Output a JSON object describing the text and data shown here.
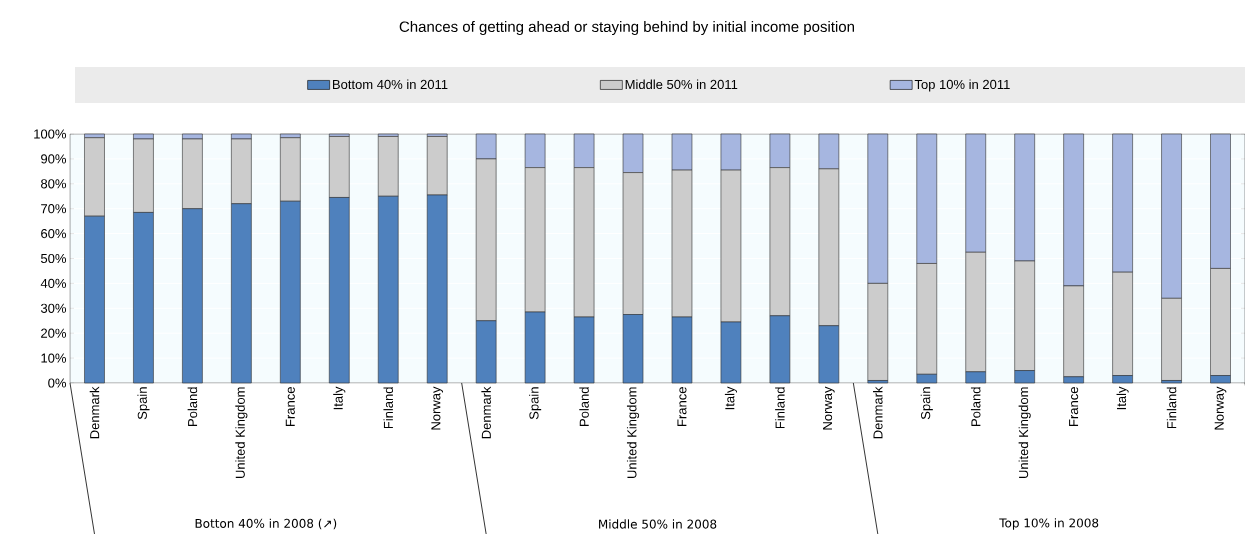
{
  "chart_data": {
    "type": "bar",
    "stacked": true,
    "title": "Chances of getting ahead or staying behind by initial income position",
    "categories": [
      "Denmark",
      "Spain",
      "Poland",
      "United Kingdom",
      "France",
      "Italy",
      "Finland",
      "Norway",
      "Denmark",
      "Spain",
      "Poland",
      "United Kingdom",
      "France",
      "Italy",
      "Finland",
      "Norway",
      "Denmark",
      "Spain",
      "Poland",
      "United Kingdom",
      "France",
      "Italy",
      "Finland",
      "Norway"
    ],
    "series": [
      {
        "name": "Bottom 40% in 2011",
        "color": "#4f81bd",
        "values": [
          67,
          68.5,
          70,
          72,
          73,
          74.5,
          75,
          75.5,
          25,
          28.5,
          26.5,
          27.5,
          26.5,
          24.5,
          27,
          23,
          1,
          3.5,
          4.5,
          5,
          2.5,
          3,
          1,
          3
        ]
      },
      {
        "name": "Middle 50% in 2011",
        "color": "#cccccc",
        "values": [
          31.5,
          29.5,
          28,
          26,
          25.5,
          24.5,
          24,
          23.5,
          65,
          58,
          60,
          57,
          59,
          61,
          59.5,
          63,
          39,
          44.5,
          48,
          44,
          36.5,
          41.5,
          33,
          43
        ]
      },
      {
        "name": "Top 10% in 2011",
        "color": "#a6b6e0",
        "values": [
          1.5,
          2,
          2,
          2,
          1.5,
          1,
          1,
          1,
          10,
          13.5,
          13.5,
          15.5,
          14.5,
          14.5,
          13.5,
          14,
          60,
          52,
          47.5,
          51,
          61,
          55.5,
          66,
          54
        ]
      }
    ],
    "ylim": [
      0,
      100
    ],
    "yticks": [
      {
        "value": 0,
        "label": "0%"
      },
      {
        "value": 10,
        "label": "10%"
      },
      {
        "value": 20,
        "label": "20%"
      },
      {
        "value": 30,
        "label": "30%"
      },
      {
        "value": 40,
        "label": "40%"
      },
      {
        "value": 50,
        "label": "50%"
      },
      {
        "value": 60,
        "label": "60%"
      },
      {
        "value": 70,
        "label": "70%"
      },
      {
        "value": 80,
        "label": "80%"
      },
      {
        "value": 90,
        "label": "90%"
      },
      {
        "value": 100,
        "label": "100%"
      }
    ],
    "grid": "y",
    "legend": "top",
    "annotations": [
      "Botton 40% in 2008 (↗)",
      "Middle 50% in 2008",
      "Top 10% in 2008"
    ]
  }
}
